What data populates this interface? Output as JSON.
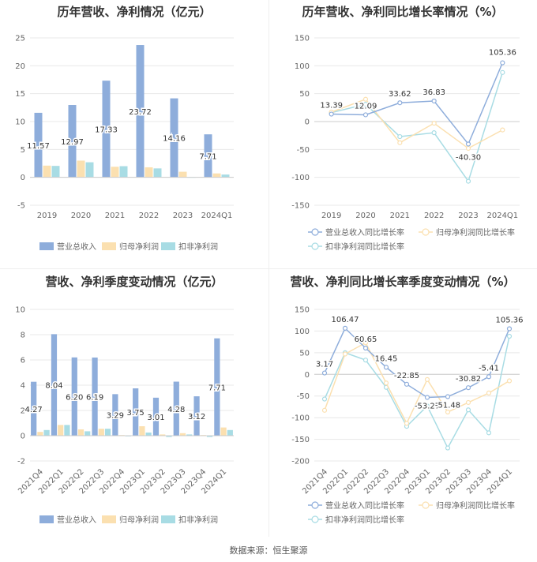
{
  "footer": "数据来源：恒生聚源",
  "colors": {
    "revenue": "#8EADDB",
    "parent": "#FBE0B0",
    "deducted": "#A8DCE4",
    "axis_text": "#666666",
    "grid": "#e8e8e8"
  },
  "legend": {
    "bar": [
      "营业总收入",
      "归母净利润",
      "扣非净利润"
    ],
    "line": [
      "营业总收入同比增长率",
      "归母净利润同比增长率",
      "扣非净利润同比增长率"
    ]
  },
  "chart_data": [
    {
      "id": "annual_bar",
      "type": "bar",
      "title": "历年营收、净利情况（亿元）",
      "categories": [
        "2019",
        "2020",
        "2021",
        "2022",
        "2023",
        "2024Q1"
      ],
      "ylim": [
        -5,
        25
      ],
      "yticks": [
        -5,
        0,
        5,
        10,
        15,
        20,
        25
      ],
      "series": [
        {
          "name": "营业总收入",
          "values": [
            11.57,
            12.97,
            17.33,
            23.72,
            14.16,
            7.71
          ]
        },
        {
          "name": "归母净利润",
          "values": [
            2.1,
            3.0,
            1.9,
            1.8,
            1.0,
            0.7
          ]
        },
        {
          "name": "扣非净利润",
          "values": [
            2.05,
            2.7,
            2.0,
            1.6,
            0.05,
            0.5
          ]
        }
      ],
      "data_labels": [
        "11.57",
        "12.97",
        "17.33",
        "23.72",
        "14.16",
        "7.71"
      ],
      "grid": true,
      "legend_position": "bottom"
    },
    {
      "id": "annual_growth",
      "type": "line",
      "title": "历年营收、净利同比增长率情况（%）",
      "categories": [
        "2019",
        "2020",
        "2021",
        "2022",
        "2023",
        "2024Q1"
      ],
      "ylim": [
        -150,
        150
      ],
      "yticks": [
        -150,
        -100,
        -50,
        0,
        50,
        100,
        150
      ],
      "series": [
        {
          "name": "营业总收入同比增长率",
          "values": [
            13.39,
            12.09,
            33.62,
            36.83,
            -40.3,
            105.36
          ]
        },
        {
          "name": "归母净利润同比增长率",
          "values": [
            17,
            40,
            -38,
            -3,
            -48,
            -15
          ]
        },
        {
          "name": "扣非净利润同比增长率",
          "values": [
            16,
            31,
            -27,
            -20,
            -107,
            88
          ]
        }
      ],
      "data_labels": [
        "13.39",
        "12.09",
        "33.62",
        "36.83",
        "-40.30",
        "105.36"
      ],
      "grid": true,
      "legend_position": "bottom"
    },
    {
      "id": "quarter_bar",
      "type": "bar",
      "title": "营收、净利季度变动情况（亿元）",
      "categories": [
        "2021Q4",
        "2022Q1",
        "2022Q2",
        "2022Q3",
        "2022Q4",
        "2023Q1",
        "2023Q2",
        "2023Q3",
        "2023Q4",
        "2024Q1"
      ],
      "ylim": [
        -2,
        10
      ],
      "yticks": [
        -2,
        0,
        2,
        4,
        6,
        8,
        10
      ],
      "series": [
        {
          "name": "营业总收入",
          "values": [
            4.27,
            8.04,
            6.2,
            6.19,
            3.29,
            3.75,
            3.01,
            4.28,
            3.12,
            7.71
          ]
        },
        {
          "name": "归母净利润",
          "values": [
            0.3,
            0.85,
            0.5,
            0.55,
            0.05,
            0.75,
            0.1,
            0.2,
            0.05,
            0.65
          ]
        },
        {
          "name": "扣非净利润",
          "values": [
            0.45,
            0.85,
            0.35,
            0.55,
            -0.05,
            0.25,
            -0.1,
            0.1,
            -0.1,
            0.45
          ]
        }
      ],
      "data_labels": [
        "4.27",
        "8.04",
        "6.20",
        "6.19",
        "3.29",
        "3.75",
        "3.01",
        "4.28",
        "3.12",
        "7.71"
      ],
      "grid": true,
      "legend_position": "bottom"
    },
    {
      "id": "quarter_growth",
      "type": "line",
      "title": "营收、净利同比增长率季度变动情况（%）",
      "categories": [
        "2021Q4",
        "2022Q1",
        "2022Q2",
        "2022Q3",
        "2022Q4",
        "2023Q1",
        "2023Q2",
        "2023Q3",
        "2023Q4",
        "2024Q1"
      ],
      "ylim": [
        -200,
        150
      ],
      "yticks": [
        -200,
        -150,
        -100,
        -50,
        0,
        50,
        100,
        150
      ],
      "series": [
        {
          "name": "营业总收入同比增长率",
          "values": [
            3.17,
            106.47,
            60.65,
            16.45,
            -22.85,
            -53.27,
            -51.48,
            -30.82,
            -5.41,
            105.36
          ]
        },
        {
          "name": "归母净利润同比增长率",
          "values": [
            -83,
            47,
            73,
            -20,
            -113,
            -12,
            -87,
            -65,
            -43,
            -15
          ]
        },
        {
          "name": "扣非净利润同比增长率",
          "values": [
            -57,
            50,
            33,
            -30,
            -120,
            -73,
            -170,
            -82,
            -135,
            88
          ]
        }
      ],
      "data_labels": [
        "3.17",
        "106.47",
        "60.65",
        "16.45",
        "-22.85",
        "-53.27",
        "-51.48",
        "-30.82",
        "-5.41",
        "105.36"
      ],
      "grid": true,
      "legend_position": "bottom"
    }
  ]
}
